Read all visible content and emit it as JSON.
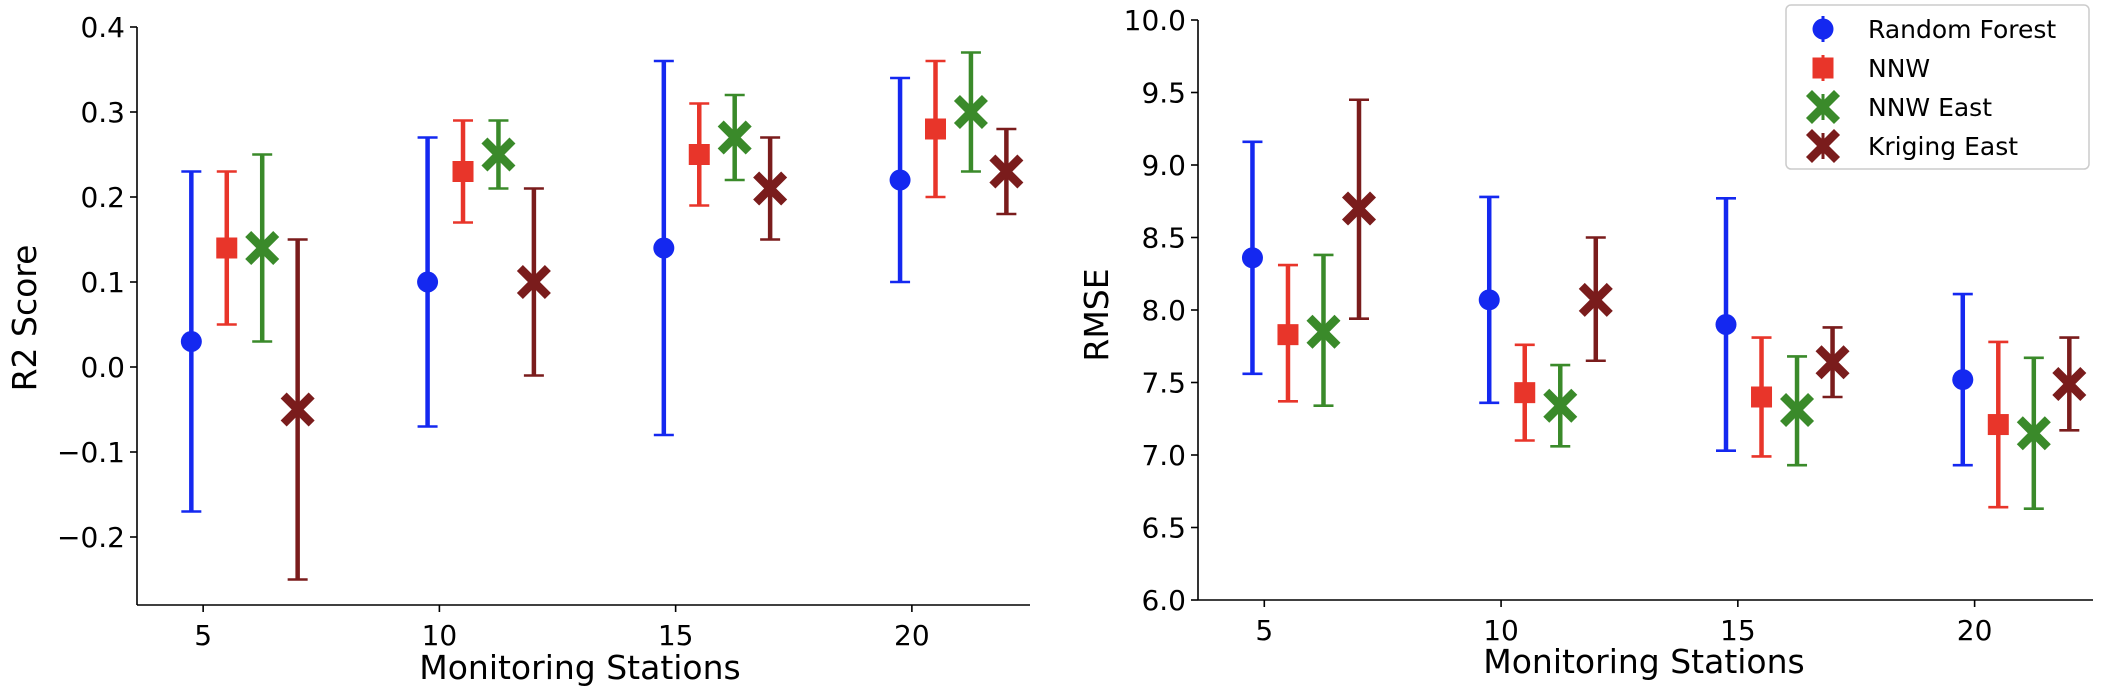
{
  "chart_data": [
    {
      "type": "scatter",
      "variant": "errorbar",
      "title": "",
      "xlabel": "Monitoring Stations",
      "ylabel": "R2 Score",
      "x_ticks": [
        5,
        10,
        15,
        20
      ],
      "y_ticks": [
        -0.2,
        -0.1,
        0.0,
        0.1,
        0.2,
        0.3,
        0.4
      ],
      "y_tick_labels": [
        "−0.2",
        "−0.1",
        "0.0",
        "0.1",
        "0.2",
        "0.3",
        "0.4"
      ],
      "xlim": [
        3.6,
        22.5
      ],
      "ylim": [
        -0.28,
        0.4
      ],
      "grid": false,
      "series": [
        {
          "name": "Random Forest",
          "color": "#1428f0",
          "marker": "circle",
          "x": [
            5,
            10,
            15,
            20
          ],
          "y": [
            0.03,
            0.1,
            0.14,
            0.22
          ],
          "yerr_low": [
            -0.17,
            -0.07,
            -0.08,
            0.1
          ],
          "yerr_high": [
            0.23,
            0.27,
            0.36,
            0.34
          ]
        },
        {
          "name": "NNW",
          "color": "#e8352a",
          "marker": "square",
          "x": [
            5,
            10,
            15,
            20
          ],
          "y": [
            0.14,
            0.23,
            0.25,
            0.28
          ],
          "yerr_low": [
            0.05,
            0.17,
            0.19,
            0.2
          ],
          "yerr_high": [
            0.23,
            0.29,
            0.31,
            0.36
          ]
        },
        {
          "name": "NNW East",
          "color": "#3a8a2a",
          "marker": "x",
          "x": [
            5,
            10,
            15,
            20
          ],
          "y": [
            0.14,
            0.25,
            0.27,
            0.3
          ],
          "yerr_low": [
            0.03,
            0.21,
            0.22,
            0.23
          ],
          "yerr_high": [
            0.25,
            0.29,
            0.32,
            0.37
          ]
        },
        {
          "name": "Kriging East",
          "color": "#7a1c1c",
          "marker": "x",
          "x": [
            5,
            10,
            15,
            20
          ],
          "y": [
            -0.05,
            0.1,
            0.21,
            0.23
          ],
          "yerr_low": [
            -0.25,
            -0.01,
            0.15,
            0.18
          ],
          "yerr_high": [
            0.15,
            0.21,
            0.27,
            0.28
          ]
        }
      ]
    },
    {
      "type": "scatter",
      "variant": "errorbar",
      "title": "",
      "xlabel": "Monitoring Stations",
      "ylabel": "RMSE",
      "x_ticks": [
        5,
        10,
        15,
        20
      ],
      "y_ticks": [
        6.0,
        6.5,
        7.0,
        7.5,
        8.0,
        8.5,
        9.0,
        9.5,
        10.0
      ],
      "y_tick_labels": [
        "6.0",
        "6.5",
        "7.0",
        "7.5",
        "8.0",
        "8.5",
        "9.0",
        "9.5",
        "10.0"
      ],
      "xlim": [
        3.6,
        22.5
      ],
      "ylim": [
        6.0,
        10.0
      ],
      "grid": false,
      "legend_position": "top-right",
      "series": [
        {
          "name": "Random Forest",
          "color": "#1428f0",
          "marker": "circle",
          "x": [
            5,
            10,
            15,
            20
          ],
          "y": [
            8.36,
            8.07,
            7.9,
            7.52
          ],
          "yerr_low": [
            7.56,
            7.36,
            7.03,
            6.93
          ],
          "yerr_high": [
            9.16,
            8.78,
            8.77,
            8.11
          ]
        },
        {
          "name": "NNW",
          "color": "#e8352a",
          "marker": "square",
          "x": [
            5,
            10,
            15,
            20
          ],
          "y": [
            7.83,
            7.43,
            7.4,
            7.21
          ],
          "yerr_low": [
            7.37,
            7.1,
            6.99,
            6.64
          ],
          "yerr_high": [
            8.31,
            7.76,
            7.81,
            7.78
          ]
        },
        {
          "name": "NNW East",
          "color": "#3a8a2a",
          "marker": "x",
          "x": [
            5,
            10,
            15,
            20
          ],
          "y": [
            7.85,
            7.34,
            7.31,
            7.15
          ],
          "yerr_low": [
            7.34,
            7.06,
            6.93,
            6.63
          ],
          "yerr_high": [
            8.38,
            7.62,
            7.68,
            7.67
          ]
        },
        {
          "name": "Kriging East",
          "color": "#7a1c1c",
          "marker": "x",
          "x": [
            5,
            10,
            15,
            20
          ],
          "y": [
            8.7,
            8.07,
            7.64,
            7.49
          ],
          "yerr_low": [
            7.94,
            7.65,
            7.4,
            7.17
          ],
          "yerr_high": [
            9.45,
            8.5,
            7.88,
            7.81
          ]
        }
      ]
    }
  ]
}
